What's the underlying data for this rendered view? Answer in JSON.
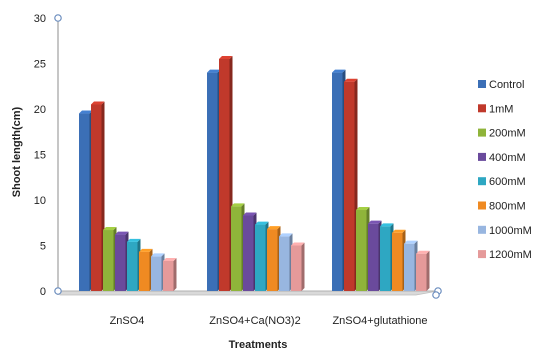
{
  "chart_data": {
    "type": "bar",
    "title": "",
    "xlabel": "Treatments",
    "ylabel": "Shoot length(cm)",
    "ylim": [
      0,
      30
    ],
    "yticks": [
      0,
      5,
      10,
      15,
      20,
      25,
      30
    ],
    "grid": false,
    "legend_position": "right",
    "categories": [
      "ZnSO4",
      "ZnSO4+Ca(NO3)2",
      "ZnSO4+glutathione"
    ],
    "series": [
      {
        "name": "Control",
        "color": "#3b6fb6",
        "values": [
          19.5,
          24.0,
          24.0
        ]
      },
      {
        "name": "1mM",
        "color": "#c0392b",
        "values": [
          20.5,
          25.5,
          23.0
        ]
      },
      {
        "name": "200mM",
        "color": "#8fb43a",
        "values": [
          6.7,
          9.3,
          8.9
        ]
      },
      {
        "name": "400mM",
        "color": "#6a4a9c",
        "values": [
          6.2,
          8.3,
          7.4
        ]
      },
      {
        "name": "600mM",
        "color": "#2ea7c2",
        "values": [
          5.4,
          7.3,
          7.1
        ]
      },
      {
        "name": "800mM",
        "color": "#ef8a22",
        "values": [
          4.3,
          6.8,
          6.4
        ]
      },
      {
        "name": "1000mM",
        "color": "#98b6e0",
        "values": [
          3.8,
          6.0,
          5.2
        ]
      },
      {
        "name": "1200mM",
        "color": "#e59a9a",
        "values": [
          3.3,
          5.0,
          4.1
        ]
      }
    ]
  }
}
